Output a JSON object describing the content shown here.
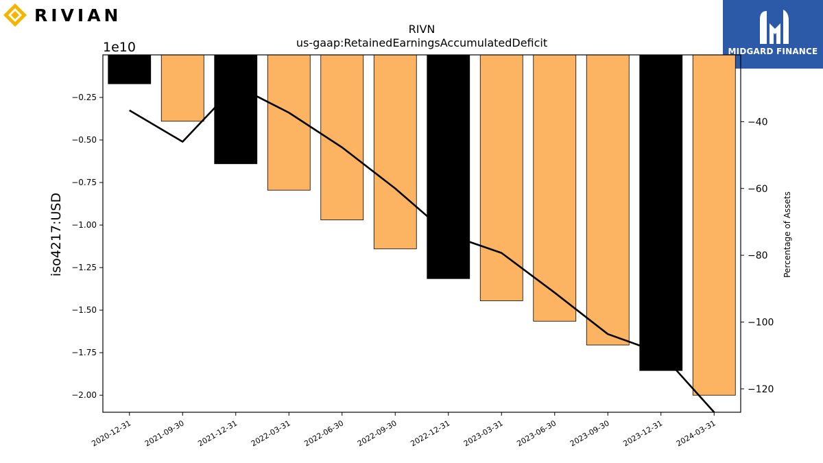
{
  "brands": {
    "left": {
      "name": "RIVIAN",
      "color": "#f5b400"
    },
    "right": {
      "name": "MIDGARD FINANCE",
      "bg": "#2d5aa8"
    }
  },
  "chart_data": {
    "type": "bar",
    "title": "RIVN",
    "subtitle": "us-gaap:RetainedEarningsAccumulatedDeficit",
    "ylabel": "iso4217:USD",
    "ylabel_right": "Percentage of Assets",
    "offset_text": "1e10",
    "categories": [
      "2020-12-31",
      "2021-09-30",
      "2021-12-31",
      "2022-03-31",
      "2022-06-30",
      "2022-09-30",
      "2022-12-31",
      "2023-03-31",
      "2023-06-30",
      "2023-09-30",
      "2023-12-31",
      "2024-03-31"
    ],
    "values": [
      -0.17,
      -0.39,
      -0.64,
      -0.795,
      -0.97,
      -1.14,
      -1.315,
      -1.445,
      -1.565,
      -1.705,
      -1.855,
      -2.0
    ],
    "bar_colors": [
      "#000000",
      "#fdb462",
      "#000000",
      "#fdb462",
      "#fdb462",
      "#fdb462",
      "#000000",
      "#fdb462",
      "#fdb462",
      "#fdb462",
      "#000000",
      "#fdb462"
    ],
    "ylim": [
      -2.1,
      0.0
    ],
    "yticks": [
      -0.25,
      -0.5,
      -0.75,
      -1.0,
      -1.25,
      -1.5,
      -1.75,
      -2.0
    ],
    "ytick_labels": [
      "−0.25",
      "−0.50",
      "−0.75",
      "−1.00",
      "−1.25",
      "−1.50",
      "−1.75",
      "−2.00"
    ],
    "line": {
      "name": "Percentage of Assets",
      "values": [
        -36.6,
        -46.0,
        -29.2,
        -37.3,
        -47.7,
        -60.0,
        -73.8,
        -79.3,
        -91.2,
        -103.6,
        -109.3,
        -127.0
      ],
      "color": "#000000",
      "ylim": [
        -127,
        -20
      ],
      "yticks": [
        -40,
        -60,
        -80,
        -100,
        -120
      ],
      "ytick_labels": [
        "−40",
        "−60",
        "−80",
        "−100",
        "−120"
      ]
    }
  }
}
